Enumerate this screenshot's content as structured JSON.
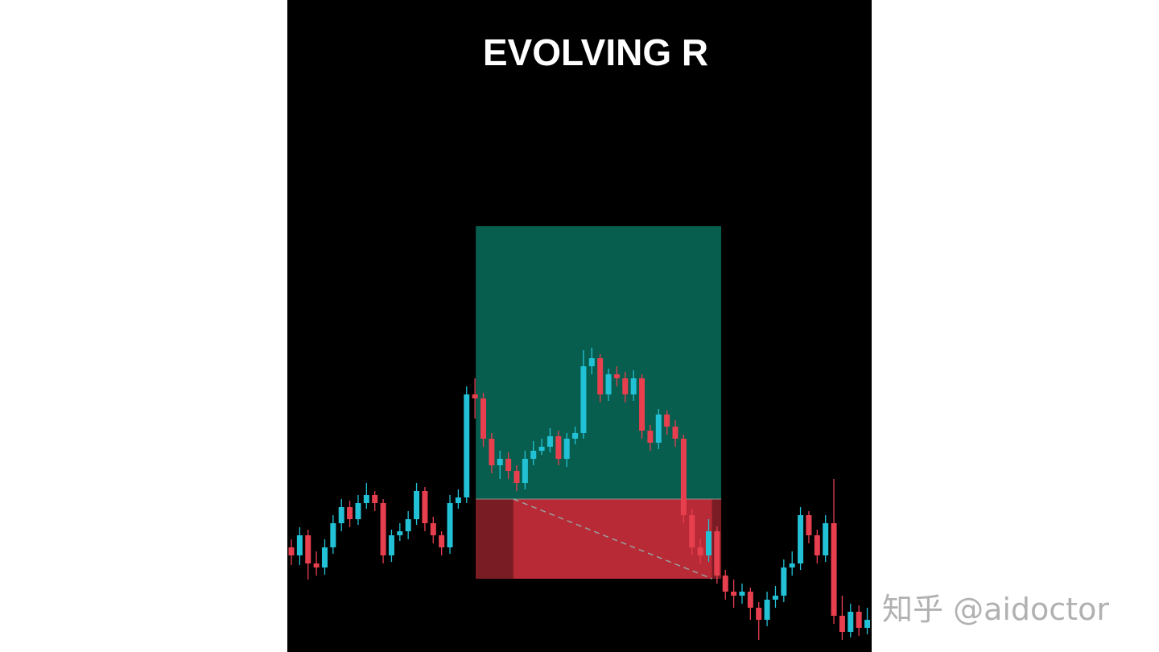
{
  "chart_data": {
    "type": "candlestick",
    "title": "EVOLVING R",
    "xlabel": "",
    "ylabel": "",
    "grid": false,
    "colors": {
      "up": "#22c1d6",
      "down": "#e83f4f",
      "background": "#000000",
      "target_zone": "#075e4e",
      "stop_zone": "#b82a35",
      "stop_zone_dark": "#7a1c24",
      "path_line": "#9aa0a0"
    },
    "ohlc": [
      [
        130,
        140,
        108,
        120
      ],
      [
        120,
        155,
        108,
        145
      ],
      [
        145,
        152,
        90,
        110
      ],
      [
        110,
        125,
        95,
        105
      ],
      [
        105,
        140,
        96,
        130
      ],
      [
        130,
        170,
        122,
        160
      ],
      [
        160,
        190,
        150,
        180
      ],
      [
        180,
        188,
        155,
        165
      ],
      [
        165,
        195,
        158,
        185
      ],
      [
        185,
        210,
        178,
        195
      ],
      [
        195,
        200,
        175,
        185
      ],
      [
        185,
        190,
        110,
        120
      ],
      [
        120,
        152,
        112,
        145
      ],
      [
        145,
        160,
        138,
        150
      ],
      [
        150,
        175,
        140,
        165
      ],
      [
        165,
        210,
        158,
        200
      ],
      [
        200,
        205,
        150,
        160
      ],
      [
        160,
        168,
        135,
        145
      ],
      [
        145,
        150,
        120,
        130
      ],
      [
        130,
        195,
        122,
        185
      ],
      [
        185,
        202,
        178,
        192
      ],
      [
        192,
        330,
        185,
        320
      ],
      [
        320,
        340,
        290,
        315
      ],
      [
        315,
        322,
        255,
        265
      ],
      [
        265,
        272,
        222,
        232
      ],
      [
        232,
        250,
        215,
        240
      ],
      [
        240,
        248,
        215,
        225
      ],
      [
        225,
        232,
        200,
        210
      ],
      [
        210,
        250,
        202,
        240
      ],
      [
        240,
        262,
        232,
        250
      ],
      [
        250,
        265,
        245,
        255
      ],
      [
        255,
        278,
        248,
        268
      ],
      [
        268,
        275,
        232,
        240
      ],
      [
        240,
        272,
        230,
        265
      ],
      [
        265,
        280,
        258,
        272
      ],
      [
        272,
        375,
        265,
        355
      ],
      [
        355,
        378,
        345,
        365
      ],
      [
        365,
        370,
        310,
        320
      ],
      [
        320,
        352,
        312,
        345
      ],
      [
        345,
        355,
        330,
        340
      ],
      [
        340,
        348,
        310,
        320
      ],
      [
        320,
        350,
        312,
        340
      ],
      [
        340,
        345,
        265,
        275
      ],
      [
        275,
        282,
        250,
        260
      ],
      [
        260,
        302,
        252,
        295
      ],
      [
        295,
        300,
        270,
        280
      ],
      [
        280,
        288,
        255,
        265
      ],
      [
        265,
        270,
        160,
        170
      ],
      [
        170,
        178,
        120,
        130
      ],
      [
        130,
        140,
        110,
        120
      ],
      [
        120,
        165,
        112,
        150
      ],
      [
        150,
        156,
        85,
        95
      ],
      [
        95,
        102,
        65,
        75
      ],
      [
        75,
        90,
        55,
        70
      ],
      [
        70,
        85,
        60,
        75
      ],
      [
        75,
        80,
        40,
        55
      ],
      [
        55,
        62,
        15,
        40
      ],
      [
        40,
        75,
        32,
        65
      ],
      [
        65,
        82,
        55,
        70
      ],
      [
        70,
        115,
        62,
        105
      ],
      [
        105,
        125,
        95,
        110
      ],
      [
        110,
        180,
        102,
        170
      ],
      [
        170,
        175,
        135,
        145
      ],
      [
        145,
        152,
        110,
        120
      ],
      [
        120,
        170,
        112,
        160
      ],
      [
        160,
        215,
        35,
        45
      ],
      [
        45,
        70,
        15,
        25
      ],
      [
        25,
        60,
        18,
        50
      ],
      [
        50,
        58,
        20,
        30
      ],
      [
        30,
        55,
        22,
        40
      ]
    ],
    "position": {
      "side": "long",
      "entry": 190,
      "target": 529,
      "stop": 91,
      "start_bar": 22.1,
      "end_bar": 51.5,
      "path_from": {
        "bar": 26.6,
        "price": 190
      },
      "path_to": {
        "bar": 50.4,
        "price": 91
      },
      "stop_dark_end_bar": 26.6,
      "stop_dark_right_start_bar": 50.4
    },
    "yrange": [
      0,
      810
    ]
  },
  "watermark": "知乎 @aidoctor"
}
